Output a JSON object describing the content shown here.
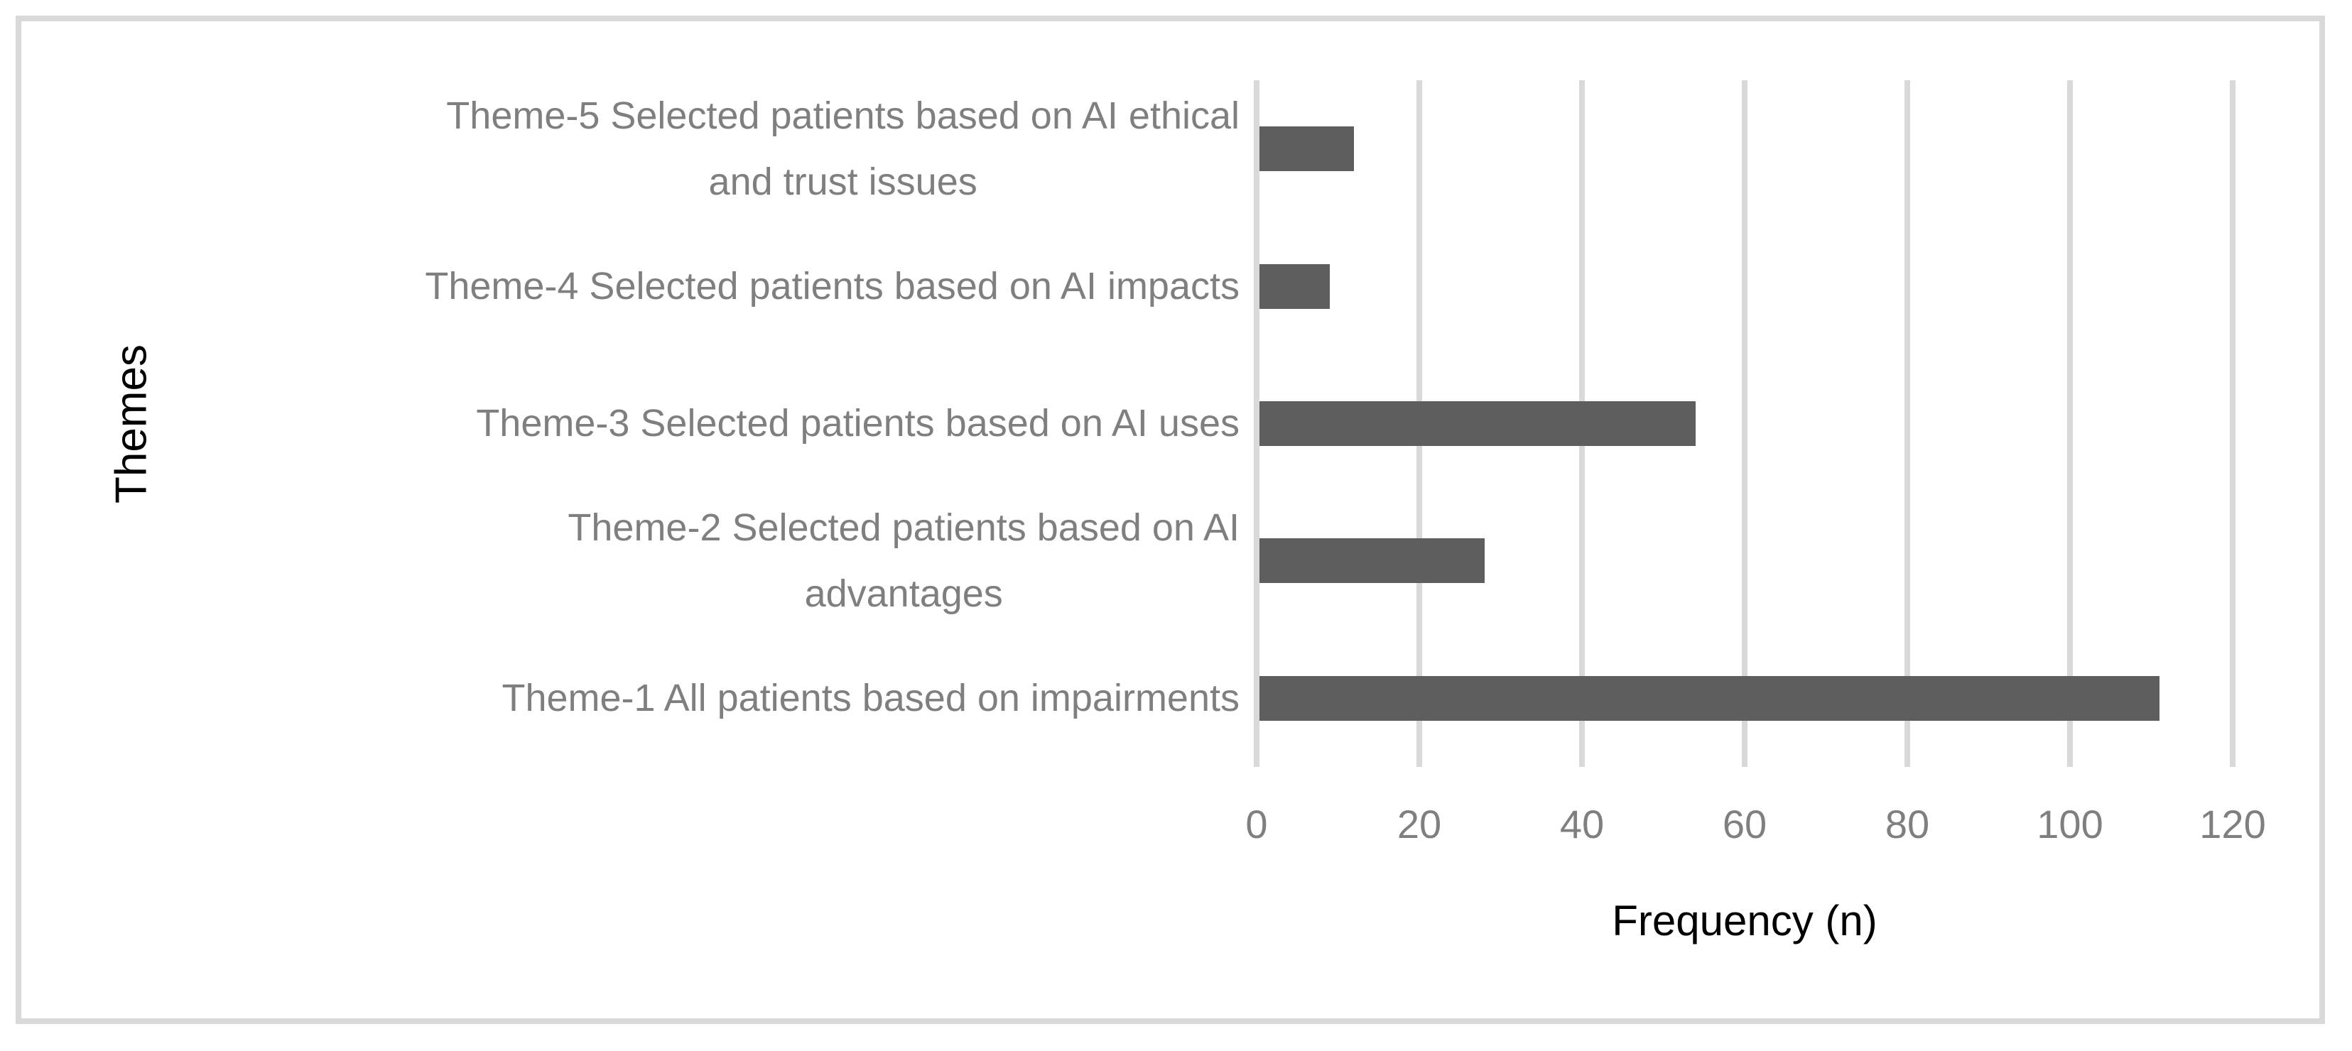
{
  "figure": {
    "background_color": "#ffffff",
    "border_color": "#d9d9d9"
  },
  "chart_data": {
    "type": "bar",
    "orientation": "horizontal",
    "title": "",
    "xlabel": "Frequency (n)",
    "ylabel": "Themes",
    "categories": [
      [
        "Theme-5 Selected patients based on AI ethical",
        "and trust issues"
      ],
      [
        "Theme-4 Selected patients based on AI impacts"
      ],
      [
        "Theme-3 Selected patients based on AI uses"
      ],
      [
        "Theme-2 Selected patients based on AI",
        "advantages"
      ],
      [
        "Theme-1 All patients based on impairments"
      ]
    ],
    "values": [
      12,
      9,
      54,
      28,
      111
    ],
    "xlim": [
      0,
      120
    ],
    "xticks": [
      0,
      20,
      40,
      60,
      80,
      100,
      120
    ],
    "grid": "vertical-gridlines-on",
    "legend": "none",
    "bar_color": "#5e5e5e",
    "gridline_color": "#d9d9d9",
    "tick_label_color": "#7f7f7f",
    "category_label_color": "#7f7f7f",
    "axis_title_color": "#000000"
  }
}
